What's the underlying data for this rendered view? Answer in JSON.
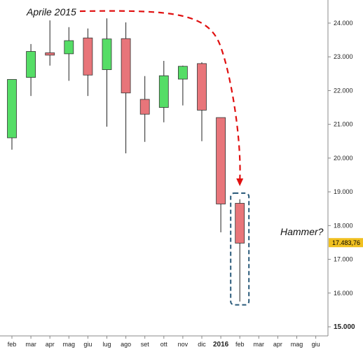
{
  "chart_data": {
    "type": "candlestick",
    "title": "",
    "xlabel": "",
    "ylabel": "",
    "ylim": [
      15000,
      24500
    ],
    "y_ticks": [
      "24.000",
      "23.000",
      "22.000",
      "21.000",
      "20.000",
      "19.000",
      "18.000",
      "17.000",
      "16.000",
      "15.000"
    ],
    "y_tick_values": [
      24000,
      23000,
      22000,
      21000,
      20000,
      19000,
      18000,
      17000,
      16000,
      15000
    ],
    "categories": [
      "feb",
      "mar",
      "apr",
      "mag",
      "giu",
      "lug",
      "ago",
      "set",
      "ott",
      "nov",
      "dic",
      "2016",
      "feb",
      "mar",
      "apr",
      "mag",
      "giu"
    ],
    "candles": [
      {
        "label": "feb",
        "open": 20600,
        "high": 22330,
        "low": 20250,
        "close": 22330,
        "color": "green"
      },
      {
        "label": "mar",
        "open": 22390,
        "high": 23380,
        "low": 21840,
        "close": 23160,
        "color": "green"
      },
      {
        "label": "apr",
        "open": 23120,
        "high": 24080,
        "low": 22740,
        "close": 23050,
        "color": "red"
      },
      {
        "label": "mag",
        "open": 23090,
        "high": 23880,
        "low": 22290,
        "close": 23480,
        "color": "green"
      },
      {
        "label": "giu",
        "open": 23560,
        "high": 23840,
        "low": 21840,
        "close": 22460,
        "color": "red"
      },
      {
        "label": "lug",
        "open": 22620,
        "high": 24140,
        "low": 20930,
        "close": 23530,
        "color": "green"
      },
      {
        "label": "ago",
        "open": 23540,
        "high": 24020,
        "low": 20140,
        "close": 21930,
        "color": "red"
      },
      {
        "label": "set",
        "open": 21740,
        "high": 22430,
        "low": 20480,
        "close": 21300,
        "color": "red"
      },
      {
        "label": "ott",
        "open": 21500,
        "high": 22880,
        "low": 21060,
        "close": 22440,
        "color": "green"
      },
      {
        "label": "nov",
        "open": 22340,
        "high": 22740,
        "low": 21560,
        "close": 22720,
        "color": "green"
      },
      {
        "label": "dic",
        "open": 22800,
        "high": 22840,
        "low": 20500,
        "close": 21420,
        "color": "red"
      },
      {
        "label": "2016",
        "open": 21200,
        "high": 21200,
        "low": 17800,
        "close": 18640,
        "color": "red"
      },
      {
        "label": "feb",
        "open": 18660,
        "high": 18780,
        "low": 15750,
        "close": 17480,
        "color": "red"
      }
    ],
    "last_value_label": "17.483,76",
    "last_value": 17483.76,
    "annotations": {
      "arrow_label": "Aprile 2015",
      "pattern_label": "Hammer?"
    },
    "grid": false,
    "colors": {
      "up": "#55dd66",
      "down": "#e8757a",
      "arrow": "#e01010",
      "box": "#2a5a7a",
      "label_bg": "#f0c020"
    }
  }
}
